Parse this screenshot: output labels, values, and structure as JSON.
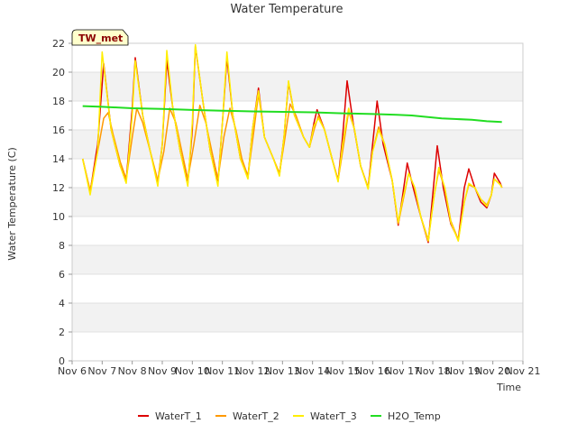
{
  "chart_data": {
    "type": "line",
    "title": "Water Temperature",
    "xlabel": "Time",
    "ylabel": "Water Temperature (C)",
    "badge": "TW_met",
    "xlim": [
      6,
      21
    ],
    "ylim": [
      0,
      22
    ],
    "yticks": [
      0,
      2,
      4,
      6,
      8,
      10,
      12,
      14,
      16,
      18,
      20,
      22
    ],
    "xticks": [
      {
        "v": 6,
        "label": "Nov 6"
      },
      {
        "v": 7,
        "label": "Nov 7"
      },
      {
        "v": 8,
        "label": "Nov 8"
      },
      {
        "v": 9,
        "label": "Nov 9"
      },
      {
        "v": 10,
        "label": "Nov 10"
      },
      {
        "v": 11,
        "label": "Nov 11"
      },
      {
        "v": 12,
        "label": "Nov 12"
      },
      {
        "v": 13,
        "label": "Nov 13"
      },
      {
        "v": 14,
        "label": "Nov 14"
      },
      {
        "v": 15,
        "label": "Nov 15"
      },
      {
        "v": 16,
        "label": "Nov 16"
      },
      {
        "v": 17,
        "label": "Nov 17"
      },
      {
        "v": 18,
        "label": "Nov 18"
      },
      {
        "v": 19,
        "label": "Nov 19"
      },
      {
        "v": 20,
        "label": "Nov 20"
      },
      {
        "v": 21,
        "label": "Nov 21"
      }
    ],
    "grid": "horizontal bands",
    "legend": "bottom",
    "series": [
      {
        "name": "WaterT_1",
        "color": "#dd0000",
        "points": [
          [
            6.35,
            14.0
          ],
          [
            6.6,
            11.7
          ],
          [
            6.85,
            15.0
          ],
          [
            7.05,
            20.6
          ],
          [
            7.3,
            16.0
          ],
          [
            7.6,
            13.5
          ],
          [
            7.8,
            12.5
          ],
          [
            8.0,
            17.5
          ],
          [
            8.1,
            21.0
          ],
          [
            8.35,
            17.0
          ],
          [
            8.6,
            14.5
          ],
          [
            8.85,
            12.3
          ],
          [
            9.0,
            15.0
          ],
          [
            9.15,
            20.8
          ],
          [
            9.35,
            17.5
          ],
          [
            9.6,
            14.5
          ],
          [
            9.85,
            12.3
          ],
          [
            10.0,
            16.0
          ],
          [
            10.1,
            21.8
          ],
          [
            10.35,
            18.0
          ],
          [
            10.6,
            14.5
          ],
          [
            10.85,
            12.3
          ],
          [
            11.0,
            16.5
          ],
          [
            11.15,
            21.0
          ],
          [
            11.35,
            17.0
          ],
          [
            11.6,
            14.0
          ],
          [
            11.85,
            12.7
          ],
          [
            12.0,
            16.0
          ],
          [
            12.2,
            18.9
          ],
          [
            12.4,
            15.5
          ],
          [
            12.7,
            14.0
          ],
          [
            12.9,
            12.9
          ],
          [
            13.05,
            15.5
          ],
          [
            13.2,
            19.3
          ],
          [
            13.4,
            17.0
          ],
          [
            13.7,
            15.5
          ],
          [
            13.9,
            14.8
          ],
          [
            14.05,
            16.5
          ],
          [
            14.15,
            17.4
          ],
          [
            14.4,
            16.0
          ],
          [
            14.65,
            14.0
          ],
          [
            14.85,
            12.5
          ],
          [
            15.0,
            15.5
          ],
          [
            15.15,
            19.4
          ],
          [
            15.35,
            16.5
          ],
          [
            15.6,
            13.5
          ],
          [
            15.85,
            12.0
          ],
          [
            16.0,
            15.0
          ],
          [
            16.15,
            18.0
          ],
          [
            16.35,
            15.0
          ],
          [
            16.65,
            12.5
          ],
          [
            16.85,
            9.4
          ],
          [
            17.0,
            11.5
          ],
          [
            17.15,
            13.7
          ],
          [
            17.35,
            12.0
          ],
          [
            17.6,
            10.0
          ],
          [
            17.85,
            8.2
          ],
          [
            18.0,
            11.5
          ],
          [
            18.15,
            14.9
          ],
          [
            18.35,
            12.0
          ],
          [
            18.6,
            9.5
          ],
          [
            18.85,
            8.4
          ],
          [
            19.05,
            12.0
          ],
          [
            19.2,
            13.3
          ],
          [
            19.4,
            12.0
          ],
          [
            19.6,
            11.0
          ],
          [
            19.8,
            10.6
          ],
          [
            19.95,
            11.5
          ],
          [
            20.05,
            13.0
          ],
          [
            20.25,
            12.3
          ],
          [
            20.3,
            12.0
          ]
        ]
      },
      {
        "name": "WaterT_2",
        "color": "#ff9900",
        "points": [
          [
            6.35,
            14.0
          ],
          [
            6.6,
            11.8
          ],
          [
            6.85,
            14.5
          ],
          [
            7.05,
            16.8
          ],
          [
            7.2,
            17.2
          ],
          [
            7.35,
            15.8
          ],
          [
            7.6,
            13.8
          ],
          [
            7.8,
            12.6
          ],
          [
            8.0,
            15.5
          ],
          [
            8.15,
            17.5
          ],
          [
            8.35,
            16.5
          ],
          [
            8.6,
            14.5
          ],
          [
            8.85,
            12.5
          ],
          [
            9.05,
            14.5
          ],
          [
            9.25,
            17.5
          ],
          [
            9.45,
            16.5
          ],
          [
            9.65,
            14.5
          ],
          [
            9.85,
            12.6
          ],
          [
            10.05,
            15.0
          ],
          [
            10.25,
            17.7
          ],
          [
            10.45,
            16.5
          ],
          [
            10.65,
            14.5
          ],
          [
            10.85,
            12.6
          ],
          [
            11.05,
            15.5
          ],
          [
            11.25,
            17.5
          ],
          [
            11.45,
            16.0
          ],
          [
            11.65,
            14.0
          ],
          [
            11.85,
            12.8
          ],
          [
            12.05,
            16.0
          ],
          [
            12.2,
            18.5
          ],
          [
            12.4,
            15.5
          ],
          [
            12.7,
            14.0
          ],
          [
            12.9,
            13.0
          ],
          [
            13.05,
            15.0
          ],
          [
            13.25,
            17.8
          ],
          [
            13.45,
            17.0
          ],
          [
            13.7,
            15.5
          ],
          [
            13.9,
            14.8
          ],
          [
            14.05,
            16.0
          ],
          [
            14.2,
            17.0
          ],
          [
            14.4,
            16.0
          ],
          [
            14.65,
            14.0
          ],
          [
            14.85,
            12.5
          ],
          [
            15.0,
            14.5
          ],
          [
            15.2,
            17.3
          ],
          [
            15.4,
            16.0
          ],
          [
            15.6,
            13.5
          ],
          [
            15.85,
            12.0
          ],
          [
            16.0,
            14.5
          ],
          [
            16.2,
            16.2
          ],
          [
            16.4,
            15.0
          ],
          [
            16.65,
            12.5
          ],
          [
            16.85,
            9.5
          ],
          [
            17.0,
            11.0
          ],
          [
            17.2,
            13.0
          ],
          [
            17.4,
            12.0
          ],
          [
            17.6,
            10.0
          ],
          [
            17.85,
            8.4
          ],
          [
            18.05,
            11.5
          ],
          [
            18.2,
            13.2
          ],
          [
            18.4,
            12.0
          ],
          [
            18.6,
            9.7
          ],
          [
            18.85,
            8.4
          ],
          [
            19.05,
            11.0
          ],
          [
            19.2,
            12.2
          ],
          [
            19.4,
            12.0
          ],
          [
            19.6,
            11.2
          ],
          [
            19.8,
            10.8
          ],
          [
            19.95,
            11.5
          ],
          [
            20.05,
            12.6
          ],
          [
            20.25,
            12.2
          ],
          [
            20.3,
            12.0
          ]
        ]
      },
      {
        "name": "WaterT_3",
        "color": "#ffee00",
        "points": [
          [
            6.35,
            14.0
          ],
          [
            6.6,
            11.5
          ],
          [
            6.85,
            14.5
          ],
          [
            7.0,
            21.4
          ],
          [
            7.3,
            16.0
          ],
          [
            7.6,
            13.5
          ],
          [
            7.8,
            12.3
          ],
          [
            8.0,
            17.0
          ],
          [
            8.1,
            20.8
          ],
          [
            8.35,
            17.0
          ],
          [
            8.6,
            14.5
          ],
          [
            8.85,
            12.1
          ],
          [
            9.0,
            15.0
          ],
          [
            9.15,
            21.5
          ],
          [
            9.35,
            17.5
          ],
          [
            9.6,
            14.5
          ],
          [
            9.85,
            12.1
          ],
          [
            10.0,
            16.5
          ],
          [
            10.1,
            21.9
          ],
          [
            10.35,
            18.0
          ],
          [
            10.6,
            14.5
          ],
          [
            10.85,
            12.1
          ],
          [
            11.0,
            16.5
          ],
          [
            11.15,
            21.4
          ],
          [
            11.35,
            17.0
          ],
          [
            11.6,
            14.0
          ],
          [
            11.85,
            12.6
          ],
          [
            12.0,
            16.0
          ],
          [
            12.2,
            18.7
          ],
          [
            12.4,
            15.5
          ],
          [
            12.7,
            14.0
          ],
          [
            12.9,
            12.8
          ],
          [
            13.05,
            15.5
          ],
          [
            13.2,
            19.4
          ],
          [
            13.4,
            17.0
          ],
          [
            13.7,
            15.5
          ],
          [
            13.9,
            14.8
          ],
          [
            14.05,
            16.3
          ],
          [
            14.2,
            16.8
          ],
          [
            14.4,
            16.0
          ],
          [
            14.65,
            14.0
          ],
          [
            14.85,
            12.4
          ],
          [
            15.0,
            15.0
          ],
          [
            15.2,
            17.5
          ],
          [
            15.4,
            16.0
          ],
          [
            15.6,
            13.5
          ],
          [
            15.85,
            11.9
          ],
          [
            16.0,
            14.5
          ],
          [
            16.2,
            16.0
          ],
          [
            16.4,
            15.0
          ],
          [
            16.65,
            12.5
          ],
          [
            16.85,
            9.6
          ],
          [
            17.0,
            11.2
          ],
          [
            17.2,
            13.0
          ],
          [
            17.4,
            12.0
          ],
          [
            17.6,
            10.0
          ],
          [
            17.85,
            8.3
          ],
          [
            18.05,
            11.5
          ],
          [
            18.2,
            13.4
          ],
          [
            18.4,
            12.0
          ],
          [
            18.6,
            9.6
          ],
          [
            18.85,
            8.3
          ],
          [
            19.05,
            11.0
          ],
          [
            19.2,
            12.3
          ],
          [
            19.4,
            12.0
          ],
          [
            19.6,
            11.2
          ],
          [
            19.8,
            10.7
          ],
          [
            19.95,
            11.5
          ],
          [
            20.05,
            12.6
          ],
          [
            20.25,
            12.2
          ],
          [
            20.3,
            12.0
          ]
        ]
      },
      {
        "name": "H2O_Temp",
        "color": "#22dd22",
        "points": [
          [
            6.35,
            17.65
          ],
          [
            7.0,
            17.6
          ],
          [
            8.0,
            17.5
          ],
          [
            9.0,
            17.45
          ],
          [
            10.0,
            17.38
          ],
          [
            11.0,
            17.33
          ],
          [
            12.0,
            17.28
          ],
          [
            13.0,
            17.25
          ],
          [
            14.0,
            17.22
          ],
          [
            15.0,
            17.15
          ],
          [
            16.0,
            17.1
          ],
          [
            16.8,
            17.05
          ],
          [
            17.3,
            17.0
          ],
          [
            17.8,
            16.9
          ],
          [
            18.3,
            16.8
          ],
          [
            18.8,
            16.75
          ],
          [
            19.3,
            16.7
          ],
          [
            19.8,
            16.6
          ],
          [
            20.3,
            16.55
          ]
        ]
      }
    ]
  }
}
